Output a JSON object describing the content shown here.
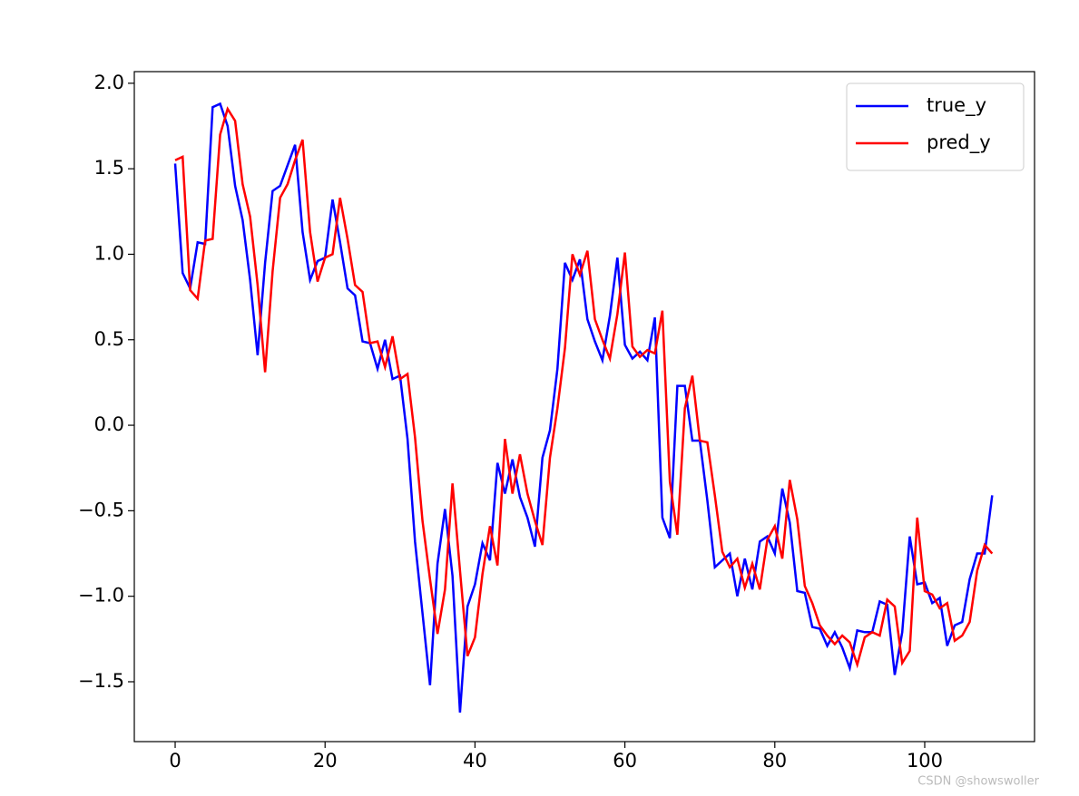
{
  "chart_data": {
    "type": "line",
    "x": [
      0,
      1,
      2,
      3,
      4,
      5,
      6,
      7,
      8,
      9,
      10,
      11,
      12,
      13,
      14,
      15,
      16,
      17,
      18,
      19,
      20,
      21,
      22,
      23,
      24,
      25,
      26,
      27,
      28,
      29,
      30,
      31,
      32,
      33,
      34,
      35,
      36,
      37,
      38,
      39,
      40,
      41,
      42,
      43,
      44,
      45,
      46,
      47,
      48,
      49,
      50,
      51,
      52,
      53,
      54,
      55,
      56,
      57,
      58,
      59,
      60,
      61,
      62,
      63,
      64,
      65,
      66,
      67,
      68,
      69,
      70,
      71,
      72,
      73,
      74,
      75,
      76,
      77,
      78,
      79,
      80,
      81,
      82,
      83,
      84,
      85,
      86,
      87,
      88,
      89,
      90,
      91,
      92,
      93,
      94,
      95,
      96,
      97,
      98,
      99,
      100,
      101,
      102,
      103,
      104,
      105,
      106,
      107,
      108,
      109
    ],
    "series": [
      {
        "name": "true_y",
        "color": "#0000ff",
        "values": [
          1.53,
          0.89,
          0.8,
          1.07,
          1.06,
          1.86,
          1.88,
          1.75,
          1.4,
          1.2,
          0.85,
          0.41,
          0.95,
          1.37,
          1.4,
          1.52,
          1.64,
          1.13,
          0.85,
          0.96,
          0.98,
          1.32,
          1.07,
          0.8,
          0.76,
          0.49,
          0.48,
          0.33,
          0.5,
          0.27,
          0.29,
          -0.08,
          -0.68,
          -1.1,
          -1.52,
          -0.81,
          -0.49,
          -0.88,
          -1.68,
          -1.06,
          -0.93,
          -0.69,
          -0.79,
          -0.22,
          -0.4,
          -0.2,
          -0.42,
          -0.54,
          -0.71,
          -0.19,
          -0.03,
          0.33,
          0.95,
          0.85,
          0.97,
          0.62,
          0.49,
          0.38,
          0.64,
          0.98,
          0.47,
          0.39,
          0.43,
          0.38,
          0.63,
          -0.54,
          -0.66,
          0.23,
          0.23,
          -0.09,
          -0.09,
          -0.44,
          -0.83,
          -0.79,
          -0.75,
          -1.0,
          -0.78,
          -0.96,
          -0.68,
          -0.65,
          -0.75,
          -0.37,
          -0.57,
          -0.97,
          -0.98,
          -1.18,
          -1.19,
          -1.29,
          -1.21,
          -1.3,
          -1.42,
          -1.2,
          -1.21,
          -1.21,
          -1.03,
          -1.05,
          -1.46,
          -1.21,
          -0.65,
          -0.93,
          -0.92,
          -1.04,
          -1.01,
          -1.29,
          -1.17,
          -1.15,
          -0.9,
          -0.75,
          -0.75,
          -0.41
        ]
      },
      {
        "name": "pred_y",
        "color": "#ff0000",
        "values": [
          1.55,
          1.57,
          0.79,
          0.74,
          1.08,
          1.09,
          1.7,
          1.85,
          1.78,
          1.41,
          1.22,
          0.82,
          0.31,
          0.9,
          1.33,
          1.41,
          1.55,
          1.67,
          1.13,
          0.84,
          0.98,
          1.0,
          1.33,
          1.09,
          0.82,
          0.78,
          0.48,
          0.49,
          0.34,
          0.52,
          0.27,
          0.3,
          -0.07,
          -0.56,
          -0.9,
          -1.22,
          -0.96,
          -0.34,
          -0.85,
          -1.35,
          -1.24,
          -0.87,
          -0.59,
          -0.82,
          -0.08,
          -0.4,
          -0.17,
          -0.4,
          -0.56,
          -0.7,
          -0.19,
          0.1,
          0.45,
          1.0,
          0.88,
          1.02,
          0.62,
          0.5,
          0.39,
          0.65,
          1.01,
          0.46,
          0.4,
          0.44,
          0.42,
          0.67,
          -0.33,
          -0.64,
          0.1,
          0.29,
          -0.09,
          -0.1,
          -0.41,
          -0.74,
          -0.83,
          -0.78,
          -0.95,
          -0.81,
          -0.96,
          -0.67,
          -0.59,
          -0.78,
          -0.32,
          -0.55,
          -0.94,
          -1.04,
          -1.17,
          -1.23,
          -1.28,
          -1.23,
          -1.27,
          -1.4,
          -1.24,
          -1.21,
          -1.23,
          -1.02,
          -1.06,
          -1.39,
          -1.32,
          -0.54,
          -0.97,
          -0.99,
          -1.07,
          -1.04,
          -1.26,
          -1.23,
          -1.15,
          -0.85,
          -0.7,
          -0.75
        ]
      }
    ],
    "xlim": [
      -5.45,
      114.65
    ],
    "xticks": [
      0,
      20,
      40,
      60,
      80,
      100
    ],
    "ylim": [
      -1.85,
      2.068
    ],
    "yticks": [
      {
        "value": -1.5,
        "label": "−1.5"
      },
      {
        "value": -1.0,
        "label": "−1.0"
      },
      {
        "value": -0.5,
        "label": "−0.5"
      },
      {
        "value": 0,
        "label": "0.0"
      },
      0.5,
      {
        "value": 1.0,
        "label": "1.0"
      },
      1.5,
      {
        "value": 2.0,
        "label": "2.0"
      }
    ],
    "legend": "upper right",
    "watermark": "CSDN @showswoller"
  }
}
